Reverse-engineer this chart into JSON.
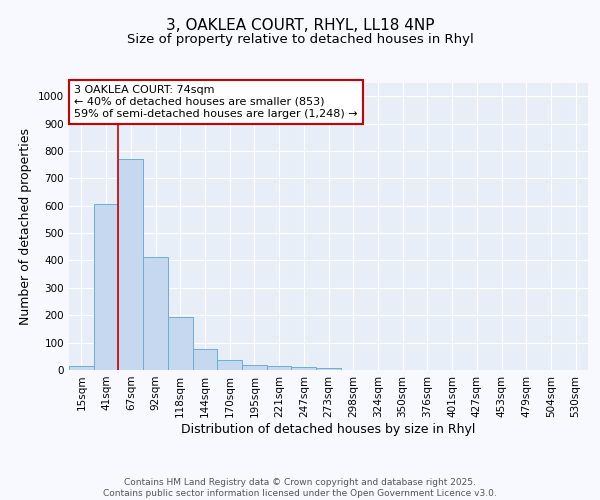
{
  "title": "3, OAKLEA COURT, RHYL, LL18 4NP",
  "subtitle": "Size of property relative to detached houses in Rhyl",
  "xlabel": "Distribution of detached houses by size in Rhyl",
  "ylabel": "Number of detached properties",
  "bar_labels": [
    "15sqm",
    "41sqm",
    "67sqm",
    "92sqm",
    "118sqm",
    "144sqm",
    "170sqm",
    "195sqm",
    "221sqm",
    "247sqm",
    "273sqm",
    "298sqm",
    "324sqm",
    "350sqm",
    "376sqm",
    "401sqm",
    "427sqm",
    "453sqm",
    "479sqm",
    "504sqm",
    "530sqm"
  ],
  "bar_values": [
    15,
    607,
    770,
    412,
    192,
    77,
    38,
    18,
    15,
    12,
    8,
    0,
    0,
    0,
    0,
    0,
    0,
    0,
    0,
    0,
    0
  ],
  "bar_color": "#c5d8f0",
  "bar_edge_color": "#6baed6",
  "vline_color": "#cc0000",
  "annotation_text": "3 OAKLEA COURT: 74sqm\n← 40% of detached houses are smaller (853)\n59% of semi-detached houses are larger (1,248) →",
  "annotation_box_facecolor": "#ffffff",
  "annotation_box_edgecolor": "#cc0000",
  "ylim": [
    0,
    1050
  ],
  "yticks": [
    0,
    100,
    200,
    300,
    400,
    500,
    600,
    700,
    800,
    900,
    1000
  ],
  "fig_background_color": "#f8f8ff",
  "plot_background_color": "#e8eef8",
  "grid_color": "#ffffff",
  "title_fontsize": 11,
  "subtitle_fontsize": 9.5,
  "axis_label_fontsize": 9,
  "tick_fontsize": 7.5,
  "annotation_fontsize": 8,
  "footer_text": "Contains HM Land Registry data © Crown copyright and database right 2025.\nContains public sector information licensed under the Open Government Licence v3.0.",
  "footer_fontsize": 6.5,
  "vline_x_index": 2
}
